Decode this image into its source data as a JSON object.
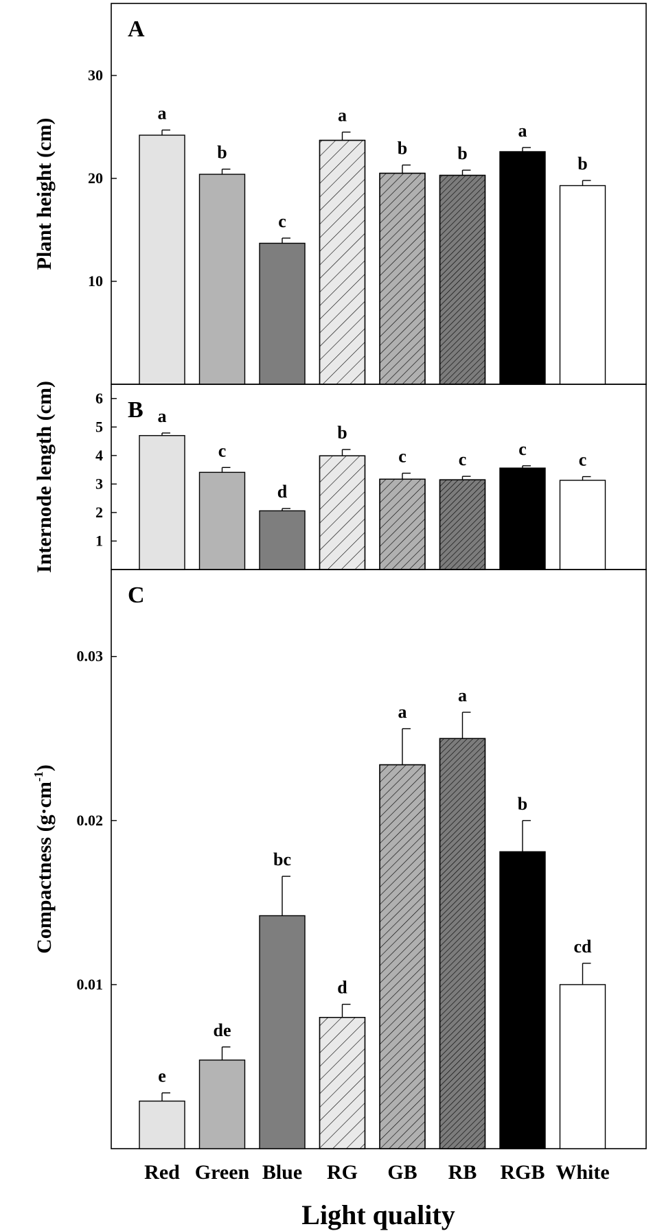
{
  "figure": {
    "xlabel": "Light quality",
    "categories": [
      "Red",
      "Green",
      "Blue",
      "RG",
      "GB",
      "RB",
      "RGB",
      "White"
    ]
  },
  "series_style": [
    {
      "fill": "#e3e3e3",
      "hatch": "none"
    },
    {
      "fill": "#b4b4b4",
      "hatch": "none"
    },
    {
      "fill": "#7e7e7e",
      "hatch": "none"
    },
    {
      "fill": "#e9e9e9",
      "hatch": "sparse"
    },
    {
      "fill": "#b0b0b0",
      "hatch": "medium"
    },
    {
      "fill": "#7c7c7c",
      "hatch": "dense"
    },
    {
      "fill": "#000000",
      "hatch": "none"
    },
    {
      "fill": "#ffffff",
      "hatch": "none"
    }
  ],
  "chart_data": [
    {
      "type": "bar",
      "panel_label": "A",
      "ylabel": "Plant height (cm)",
      "ylim": [
        0,
        37
      ],
      "yticks": [
        10,
        20,
        30
      ],
      "ytick_labels": [
        "10",
        "20",
        "30"
      ],
      "categories": [
        "Red",
        "Green",
        "Blue",
        "RG",
        "GB",
        "RB",
        "RGB",
        "White"
      ],
      "values": [
        24.2,
        20.4,
        13.7,
        23.7,
        20.5,
        20.3,
        22.6,
        19.3
      ],
      "errors": [
        0.5,
        0.5,
        0.5,
        0.8,
        0.8,
        0.5,
        0.4,
        0.5
      ],
      "letters": [
        "a",
        "b",
        "c",
        "a",
        "b",
        "b",
        "a",
        "b"
      ]
    },
    {
      "type": "bar",
      "panel_label": "B",
      "ylabel": "Internode length (cm)",
      "ylim": [
        0,
        6.5
      ],
      "yticks": [
        1,
        2,
        3,
        4,
        5,
        6
      ],
      "ytick_labels": [
        "1",
        "2",
        "3",
        "4",
        "5",
        "6"
      ],
      "categories": [
        "Red",
        "Green",
        "Blue",
        "RG",
        "GB",
        "RB",
        "RGB",
        "White"
      ],
      "values": [
        4.7,
        3.41,
        2.06,
        3.99,
        3.17,
        3.15,
        3.56,
        3.13
      ],
      "errors": [
        0.09,
        0.17,
        0.08,
        0.22,
        0.21,
        0.12,
        0.08,
        0.13
      ],
      "letters": [
        "a",
        "c",
        "d",
        "b",
        "c",
        "c",
        "c",
        "c"
      ]
    },
    {
      "type": "bar",
      "panel_label": "C",
      "ylabel": "Compactness (g·cm",
      "ylabel_sup": "-1",
      "ylabel_end": ")",
      "ylim": [
        0,
        0.0353
      ],
      "yticks": [
        0.01,
        0.02,
        0.03
      ],
      "ytick_labels": [
        "0.01",
        "0.02",
        "0.03"
      ],
      "categories": [
        "Red",
        "Green",
        "Blue",
        "RG",
        "GB",
        "RB",
        "RGB",
        "White"
      ],
      "values": [
        0.0029,
        0.0054,
        0.0142,
        0.008,
        0.0234,
        0.025,
        0.0181,
        0.01
      ],
      "errors": [
        0.0005,
        0.0008,
        0.0024,
        0.0008,
        0.0022,
        0.0016,
        0.0019,
        0.0013
      ],
      "letters": [
        "e",
        "de",
        "bc",
        "d",
        "a",
        "a",
        "b",
        "cd"
      ]
    }
  ]
}
